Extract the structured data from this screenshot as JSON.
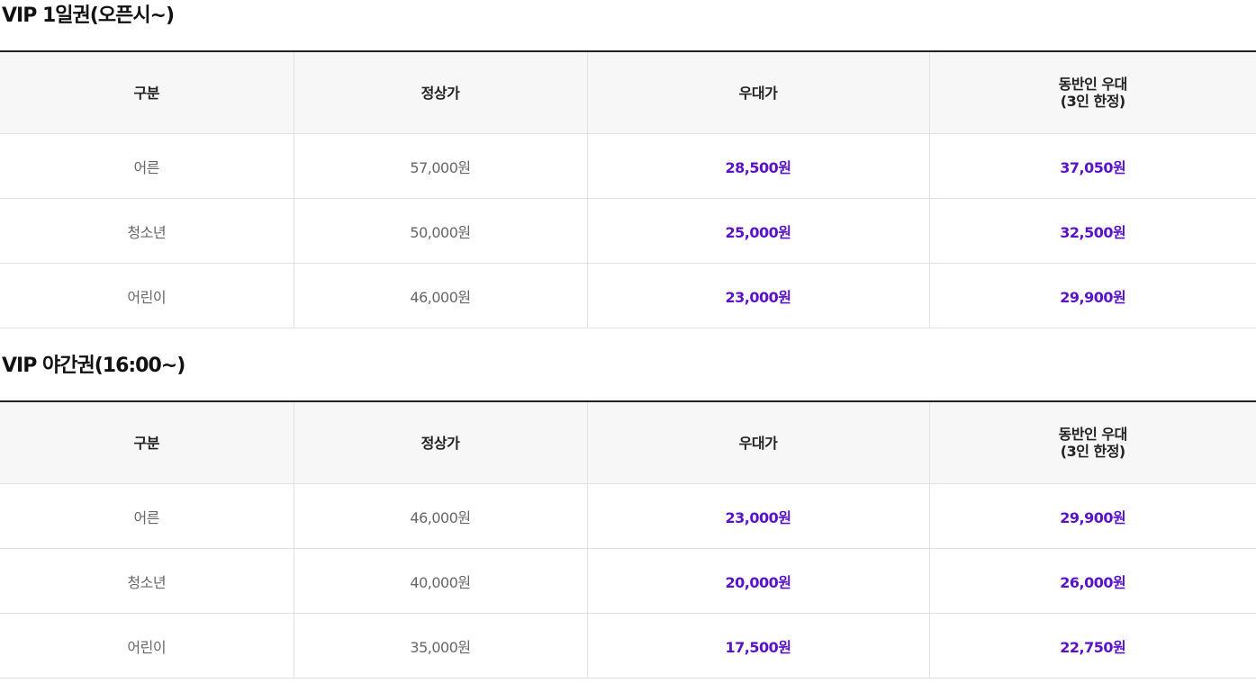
{
  "colors": {
    "accent_price": "#5a12c8",
    "header_bg": "#f7f7f7",
    "border": "#e2e2e2",
    "top_rule": "#222222"
  },
  "sections": [
    {
      "title": "VIP 1일권(오픈시~)",
      "headers": {
        "category": "구분",
        "regular": "정상가",
        "discount": "우대가",
        "companion_line1": "동반인 우대",
        "companion_line2": "(3인 한정)"
      },
      "rows": [
        {
          "category": "어른",
          "regular": "57,000원",
          "discount": "28,500원",
          "companion": "37,050원"
        },
        {
          "category": "청소년",
          "regular": "50,000원",
          "discount": "25,000원",
          "companion": "32,500원"
        },
        {
          "category": "어린이",
          "regular": "46,000원",
          "discount": "23,000원",
          "companion": "29,900원"
        }
      ]
    },
    {
      "title": "VIP 야간권(16:00~)",
      "headers": {
        "category": "구분",
        "regular": "정상가",
        "discount": "우대가",
        "companion_line1": "동반인 우대",
        "companion_line2": "(3인 한정)"
      },
      "rows": [
        {
          "category": "어른",
          "regular": "46,000원",
          "discount": "23,000원",
          "companion": "29,900원"
        },
        {
          "category": "청소년",
          "regular": "40,000원",
          "discount": "20,000원",
          "companion": "26,000원"
        },
        {
          "category": "어린이",
          "regular": "35,000원",
          "discount": "17,500원",
          "companion": "22,750원"
        }
      ]
    }
  ]
}
